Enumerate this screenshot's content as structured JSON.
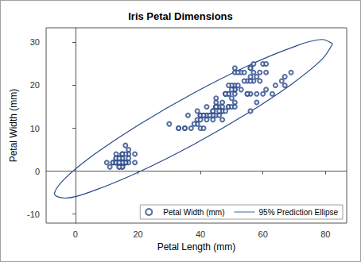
{
  "chart_data": {
    "type": "scatter",
    "title": "Iris Petal Dimensions",
    "x_label": "Petal Length (mm)",
    "y_label": "Petal Width (mm)",
    "xlim": [
      -9.4,
      86.8
    ],
    "ylim": [
      -12.1,
      33.4
    ],
    "xticks": [
      0,
      20,
      40,
      60,
      80
    ],
    "yticks": [
      -10,
      0,
      10,
      20,
      30
    ],
    "grid": false,
    "legend": "bottom right",
    "series": [
      {
        "name": "Petal Width (mm)",
        "type": "scatter",
        "marker": "circle",
        "color": "#2a4a8a",
        "x": [
          14,
          14,
          13,
          15,
          14,
          17,
          14,
          15,
          14,
          15,
          15,
          16,
          14,
          11,
          12,
          15,
          13,
          14,
          17,
          15,
          17,
          15,
          10,
          17,
          19,
          16,
          16,
          15,
          14,
          16,
          16,
          15,
          15,
          14,
          15,
          12,
          13,
          14,
          13,
          15,
          13,
          13,
          13,
          16,
          19,
          14,
          16,
          14,
          15,
          14,
          47,
          45,
          49,
          40,
          46,
          45,
          47,
          33,
          46,
          39,
          35,
          42,
          40,
          47,
          36,
          44,
          45,
          41,
          45,
          39,
          48,
          40,
          49,
          47,
          43,
          44,
          48,
          50,
          45,
          35,
          38,
          37,
          39,
          51,
          45,
          45,
          47,
          44,
          41,
          40,
          44,
          46,
          40,
          33,
          42,
          42,
          42,
          43,
          30,
          41,
          60,
          51,
          59,
          56,
          58,
          66,
          45,
          63,
          58,
          61,
          51,
          53,
          55,
          50,
          51,
          53,
          55,
          67,
          69,
          50,
          57,
          49,
          67,
          49,
          57,
          60,
          48,
          49,
          56,
          58,
          61,
          64,
          56,
          51,
          56,
          61,
          56,
          55,
          48,
          54,
          56,
          51,
          51,
          59,
          57,
          52,
          50,
          52,
          54,
          51
        ],
        "values": [
          2,
          2,
          2,
          2,
          2,
          4,
          3,
          2,
          2,
          1,
          2,
          2,
          1,
          1,
          2,
          4,
          4,
          3,
          3,
          3,
          2,
          4,
          2,
          5,
          2,
          2,
          4,
          2,
          2,
          2,
          2,
          4,
          1,
          2,
          2,
          2,
          2,
          1,
          2,
          2,
          3,
          3,
          2,
          6,
          4,
          3,
          2,
          2,
          2,
          2,
          14,
          15,
          15,
          13,
          15,
          13,
          16,
          10,
          13,
          14,
          10,
          15,
          10,
          14,
          13,
          14,
          15,
          10,
          15,
          11,
          18,
          13,
          15,
          12,
          13,
          14,
          14,
          17,
          15,
          10,
          11,
          10,
          12,
          16,
          15,
          16,
          15,
          13,
          13,
          13,
          12,
          14,
          12,
          10,
          13,
          12,
          13,
          13,
          11,
          13,
          25,
          19,
          21,
          18,
          22,
          21,
          17,
          18,
          18,
          25,
          20,
          19,
          21,
          20,
          24,
          23,
          18,
          22,
          23,
          15,
          23,
          20,
          20,
          18,
          21,
          18,
          18,
          18,
          21,
          16,
          19,
          20,
          22,
          15,
          14,
          23,
          24,
          18,
          18,
          21,
          24,
          23,
          19,
          23,
          25,
          23,
          19,
          20,
          23,
          18
        ]
      },
      {
        "name": "95% Prediction Ellipse",
        "type": "line",
        "line_style": "solid",
        "color": "#2a4a8a",
        "x": [
          82.3,
          78.91,
          69.27,
          54.83,
          37.8,
          20.77,
          6.33,
          -3.31,
          -6.7,
          -3.31,
          6.33,
          20.77,
          37.8,
          54.83,
          69.27,
          78.91,
          82.3
        ],
        "values": [
          29.7,
          30.67,
          28.81,
          24.44,
          18.2,
          11.04,
          4.07,
          -1.67,
          -5.3,
          -6.27,
          -4.41,
          -0.04,
          6.2,
          13.36,
          20.33,
          26.07,
          29.7
        ]
      }
    ]
  }
}
